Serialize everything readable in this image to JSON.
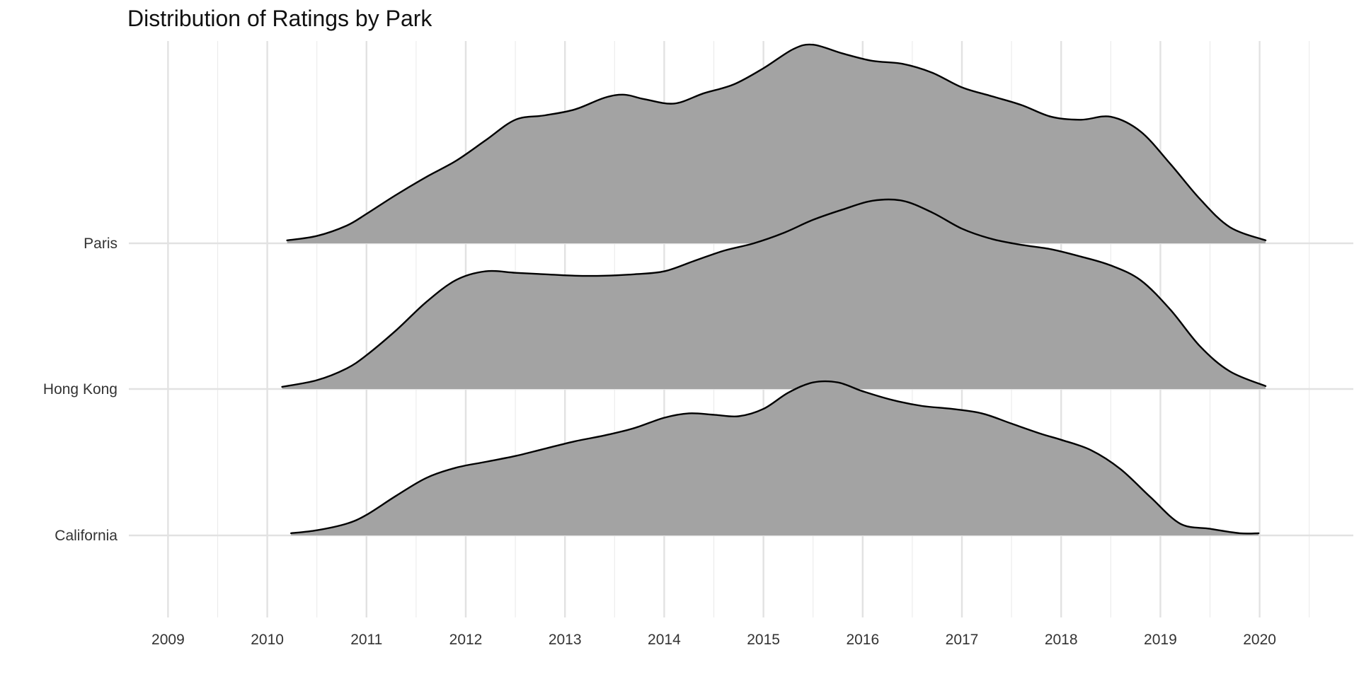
{
  "chart_data": {
    "type": "area",
    "subtype": "ridgeline",
    "title": "Distribution of Ratings by Park",
    "xlabel": "",
    "ylabel": "",
    "xlim": [
      2008.6,
      2020.9
    ],
    "x_ticks": [
      "2009",
      "2010",
      "2011",
      "2012",
      "2013",
      "2014",
      "2015",
      "2016",
      "2017",
      "2018",
      "2019",
      "2020"
    ],
    "x_tick_values": [
      2009,
      2010,
      2011,
      2012,
      2013,
      2014,
      2015,
      2016,
      2017,
      2018,
      2019,
      2020
    ],
    "categories": [
      "California",
      "Hong Kong",
      "Paris"
    ],
    "grid": true,
    "fill_color": "#a3a3a3",
    "line_color": "#000000",
    "series": [
      {
        "name": "California",
        "x": [
          2010.24,
          2010.5,
          2010.8,
          2011.0,
          2011.3,
          2011.6,
          2011.9,
          2012.2,
          2012.5,
          2012.8,
          2013.1,
          2013.4,
          2013.7,
          2014.0,
          2014.25,
          2014.5,
          2014.75,
          2015.0,
          2015.25,
          2015.5,
          2015.75,
          2016.0,
          2016.3,
          2016.6,
          2016.9,
          2017.2,
          2017.5,
          2017.8,
          2018.0,
          2018.3,
          2018.6,
          2018.9,
          2019.2,
          2019.5,
          2019.8,
          2019.99
        ],
        "density": [
          0.015,
          0.035,
          0.08,
          0.14,
          0.27,
          0.39,
          0.46,
          0.5,
          0.54,
          0.59,
          0.64,
          0.68,
          0.73,
          0.8,
          0.83,
          0.82,
          0.81,
          0.86,
          0.97,
          1.04,
          1.04,
          0.98,
          0.92,
          0.88,
          0.86,
          0.83,
          0.76,
          0.69,
          0.65,
          0.58,
          0.45,
          0.26,
          0.08,
          0.045,
          0.015,
          0.015
        ]
      },
      {
        "name": "Hong Kong",
        "x": [
          2010.15,
          2010.5,
          2010.8,
          2011.0,
          2011.3,
          2011.6,
          2011.9,
          2012.2,
          2012.5,
          2012.8,
          2013.1,
          2013.4,
          2013.7,
          2014.0,
          2014.3,
          2014.6,
          2014.9,
          2015.2,
          2015.5,
          2015.8,
          2016.1,
          2016.4,
          2016.7,
          2017.0,
          2017.3,
          2017.6,
          2017.9,
          2018.2,
          2018.5,
          2018.8,
          2019.1,
          2019.4,
          2019.7,
          2020.06
        ],
        "density": [
          0.015,
          0.06,
          0.14,
          0.23,
          0.4,
          0.59,
          0.74,
          0.8,
          0.79,
          0.78,
          0.77,
          0.77,
          0.78,
          0.8,
          0.87,
          0.94,
          0.99,
          1.06,
          1.15,
          1.22,
          1.28,
          1.28,
          1.2,
          1.09,
          1.02,
          0.98,
          0.95,
          0.9,
          0.84,
          0.74,
          0.54,
          0.29,
          0.12,
          0.02
        ]
      },
      {
        "name": "Paris",
        "x": [
          2010.2,
          2010.5,
          2010.8,
          2011.0,
          2011.3,
          2011.6,
          2011.9,
          2012.2,
          2012.5,
          2012.8,
          2013.1,
          2013.4,
          2013.6,
          2013.8,
          2014.1,
          2014.4,
          2014.7,
          2015.0,
          2015.3,
          2015.5,
          2015.8,
          2016.1,
          2016.4,
          2016.7,
          2017.0,
          2017.3,
          2017.6,
          2017.9,
          2018.2,
          2018.5,
          2018.8,
          2019.1,
          2019.4,
          2019.7,
          2020.06
        ],
        "density": [
          0.02,
          0.05,
          0.12,
          0.2,
          0.33,
          0.45,
          0.56,
          0.7,
          0.84,
          0.87,
          0.91,
          0.99,
          1.01,
          0.98,
          0.95,
          1.02,
          1.08,
          1.19,
          1.32,
          1.35,
          1.29,
          1.24,
          1.22,
          1.16,
          1.06,
          1.0,
          0.94,
          0.86,
          0.84,
          0.86,
          0.76,
          0.54,
          0.3,
          0.11,
          0.02
        ]
      }
    ]
  }
}
